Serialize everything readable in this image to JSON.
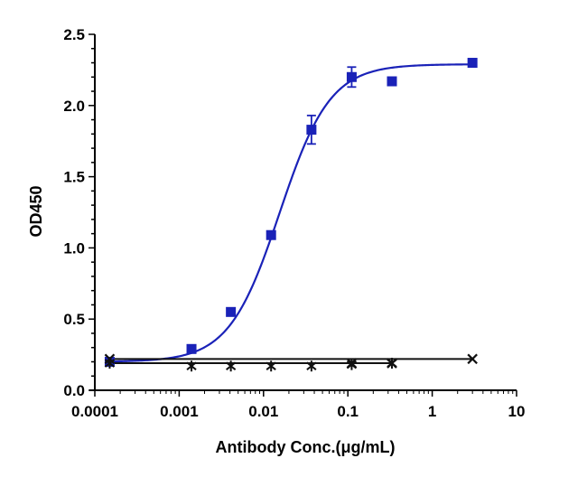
{
  "chart_data": {
    "type": "scatter",
    "title": "",
    "xlabel": "Antibody Conc.(μg/mL)",
    "ylabel": "OD450",
    "xscale": "log",
    "xlim": [
      0.0001,
      10
    ],
    "ylim": [
      0,
      2.5
    ],
    "x_tick_labels": [
      "0.0001",
      "0.001",
      "0.01",
      "0.1",
      "1",
      "10"
    ],
    "y_tick_labels": [
      "0.0",
      "0.5",
      "1.0",
      "1.5",
      "2.0",
      "2.5"
    ],
    "grid": false,
    "legend": "none",
    "series": [
      {
        "marker": "square",
        "color": "#1a22b8",
        "fit": "four-parameter-logistic",
        "points": [
          {
            "x": 0.00015,
            "y": 0.2
          },
          {
            "x": 0.0014,
            "y": 0.29
          },
          {
            "x": 0.0041,
            "y": 0.55
          },
          {
            "x": 0.0123,
            "y": 1.09
          },
          {
            "x": 0.037,
            "y": 1.83,
            "err": 0.1
          },
          {
            "x": 0.111,
            "y": 2.2,
            "err": 0.07
          },
          {
            "x": 0.333,
            "y": 2.17
          },
          {
            "x": 3.0,
            "y": 2.3
          }
        ]
      },
      {
        "marker": "x",
        "color": "#111111",
        "fit": "line",
        "points": [
          {
            "x": 0.00015,
            "y": 0.22
          },
          {
            "x": 0.111,
            "y": 0.19
          },
          {
            "x": 0.333,
            "y": 0.19
          },
          {
            "x": 3.0,
            "y": 0.22
          }
        ]
      },
      {
        "marker": "asterisk",
        "color": "#111111",
        "fit": "line",
        "points": [
          {
            "x": 0.00015,
            "y": 0.19
          },
          {
            "x": 0.0014,
            "y": 0.17
          },
          {
            "x": 0.0041,
            "y": 0.17
          },
          {
            "x": 0.0123,
            "y": 0.17
          },
          {
            "x": 0.037,
            "y": 0.17
          },
          {
            "x": 0.111,
            "y": 0.18
          },
          {
            "x": 0.333,
            "y": 0.19
          }
        ]
      }
    ]
  }
}
